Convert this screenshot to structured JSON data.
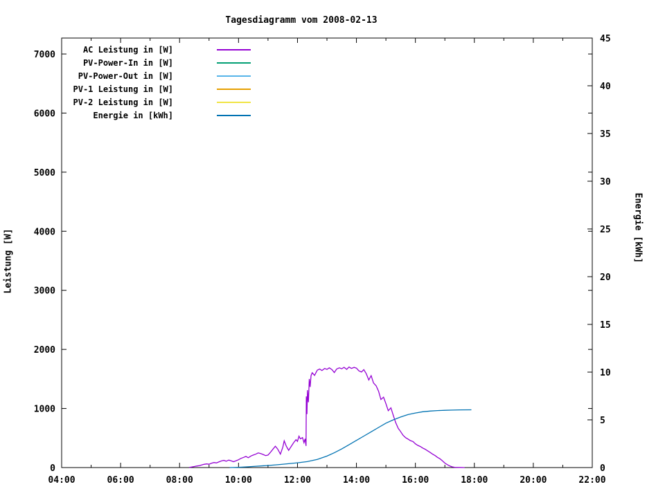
{
  "chart_data": {
    "type": "line",
    "title": "Tagesdiagramm vom 2008-02-13",
    "grid": false,
    "legend_position": "top-left-inside",
    "x_axis": {
      "unit": "time",
      "range": [
        4,
        22
      ],
      "ticks": [
        {
          "hour": 4,
          "label": "04:00"
        },
        {
          "hour": 6,
          "label": "06:00"
        },
        {
          "hour": 8,
          "label": "08:00"
        },
        {
          "hour": 10,
          "label": "10:00"
        },
        {
          "hour": 12,
          "label": "12:00"
        },
        {
          "hour": 14,
          "label": "14:00"
        },
        {
          "hour": 16,
          "label": "16:00"
        },
        {
          "hour": 18,
          "label": "18:00"
        },
        {
          "hour": 20,
          "label": "20:00"
        },
        {
          "hour": 22,
          "label": "22:00"
        }
      ],
      "minor_ticks": [
        5,
        7,
        9,
        11,
        13,
        15,
        17,
        19,
        21
      ]
    },
    "y_left": {
      "label": "Leistung [W]",
      "range": [
        0,
        7270
      ],
      "ticks": [
        0,
        1000,
        2000,
        3000,
        4000,
        5000,
        6000,
        7000
      ]
    },
    "y_right": {
      "label": "Energie [kWh]",
      "range": [
        0,
        45
      ],
      "ticks": [
        0,
        5,
        10,
        15,
        20,
        25,
        30,
        35,
        40,
        45
      ]
    },
    "series": [
      {
        "id": "ac-leistung",
        "name": "AC Leistung in [W]",
        "color": "#9400D3",
        "axis": "left",
        "points": [
          [
            8.33,
            2
          ],
          [
            8.42,
            10
          ],
          [
            8.5,
            18
          ],
          [
            8.58,
            26
          ],
          [
            8.67,
            32
          ],
          [
            8.75,
            45
          ],
          [
            8.83,
            55
          ],
          [
            8.92,
            62
          ],
          [
            9.0,
            56
          ],
          [
            9.08,
            72
          ],
          [
            9.17,
            85
          ],
          [
            9.25,
            78
          ],
          [
            9.33,
            95
          ],
          [
            9.42,
            112
          ],
          [
            9.5,
            122
          ],
          [
            9.58,
            108
          ],
          [
            9.67,
            126
          ],
          [
            9.75,
            114
          ],
          [
            9.83,
            100
          ],
          [
            9.92,
            116
          ],
          [
            10.0,
            132
          ],
          [
            10.08,
            155
          ],
          [
            10.17,
            172
          ],
          [
            10.25,
            188
          ],
          [
            10.33,
            166
          ],
          [
            10.42,
            196
          ],
          [
            10.5,
            212
          ],
          [
            10.58,
            226
          ],
          [
            10.67,
            248
          ],
          [
            10.75,
            236
          ],
          [
            10.83,
            222
          ],
          [
            10.92,
            202
          ],
          [
            11.0,
            212
          ],
          [
            11.08,
            256
          ],
          [
            11.17,
            312
          ],
          [
            11.25,
            362
          ],
          [
            11.33,
            312
          ],
          [
            11.42,
            228
          ],
          [
            11.5,
            342
          ],
          [
            11.55,
            452
          ],
          [
            11.62,
            362
          ],
          [
            11.7,
            292
          ],
          [
            11.78,
            352
          ],
          [
            11.87,
            422
          ],
          [
            11.95,
            472
          ],
          [
            12.0,
            442
          ],
          [
            12.05,
            532
          ],
          [
            12.1,
            486
          ],
          [
            12.17,
            508
          ],
          [
            12.22,
            422
          ],
          [
            12.26,
            486
          ],
          [
            12.29,
            366
          ],
          [
            12.3,
            1205
          ],
          [
            12.32,
            905
          ],
          [
            12.34,
            1310
          ],
          [
            12.37,
            1105
          ],
          [
            12.4,
            1500
          ],
          [
            12.43,
            1365
          ],
          [
            12.46,
            1555
          ],
          [
            12.5,
            1605
          ],
          [
            12.58,
            1560
          ],
          [
            12.67,
            1648
          ],
          [
            12.75,
            1668
          ],
          [
            12.83,
            1642
          ],
          [
            12.92,
            1678
          ],
          [
            13.0,
            1662
          ],
          [
            13.08,
            1688
          ],
          [
            13.17,
            1658
          ],
          [
            13.25,
            1608
          ],
          [
            13.33,
            1668
          ],
          [
            13.42,
            1688
          ],
          [
            13.5,
            1672
          ],
          [
            13.58,
            1696
          ],
          [
            13.67,
            1662
          ],
          [
            13.75,
            1702
          ],
          [
            13.83,
            1678
          ],
          [
            13.92,
            1696
          ],
          [
            14.0,
            1682
          ],
          [
            14.08,
            1638
          ],
          [
            14.17,
            1618
          ],
          [
            14.25,
            1658
          ],
          [
            14.33,
            1592
          ],
          [
            14.42,
            1482
          ],
          [
            14.5,
            1556
          ],
          [
            14.58,
            1432
          ],
          [
            14.67,
            1382
          ],
          [
            14.75,
            1292
          ],
          [
            14.83,
            1152
          ],
          [
            14.92,
            1192
          ],
          [
            15.0,
            1082
          ],
          [
            15.08,
            962
          ],
          [
            15.17,
            1012
          ],
          [
            15.25,
            882
          ],
          [
            15.33,
            762
          ],
          [
            15.42,
            662
          ],
          [
            15.47,
            630
          ],
          [
            15.58,
            548
          ],
          [
            15.67,
            506
          ],
          [
            15.75,
            482
          ],
          [
            15.83,
            456
          ],
          [
            15.92,
            440
          ],
          [
            16.0,
            402
          ],
          [
            16.08,
            376
          ],
          [
            16.17,
            356
          ],
          [
            16.25,
            330
          ],
          [
            16.33,
            310
          ],
          [
            16.42,
            282
          ],
          [
            16.5,
            256
          ],
          [
            16.58,
            230
          ],
          [
            16.67,
            202
          ],
          [
            16.75,
            172
          ],
          [
            16.83,
            150
          ],
          [
            16.92,
            112
          ],
          [
            17.0,
            76
          ],
          [
            17.08,
            50
          ],
          [
            17.17,
            26
          ],
          [
            17.25,
            12
          ],
          [
            17.33,
            5
          ],
          [
            17.5,
            2
          ],
          [
            17.67,
            0
          ]
        ]
      },
      {
        "id": "pv-power-in",
        "name": "PV-Power-In in [W]",
        "color": "#009E73",
        "axis": "left",
        "points": []
      },
      {
        "id": "pv-power-out",
        "name": "PV-Power-Out in [W]",
        "color": "#56B4E9",
        "axis": "left",
        "points": []
      },
      {
        "id": "pv-1-leistung",
        "name": "PV-1 Leistung in [W]",
        "color": "#E69F00",
        "axis": "left",
        "points": []
      },
      {
        "id": "pv-2-leistung",
        "name": "PV-2 Leistung in [W]",
        "color": "#F0E442",
        "axis": "left",
        "points": []
      },
      {
        "id": "energie",
        "name": "Energie in [kWh]",
        "color": "#0072B2",
        "axis": "right",
        "points": [
          [
            9.7,
            0.0
          ],
          [
            10.0,
            0.03
          ],
          [
            10.33,
            0.08
          ],
          [
            10.67,
            0.15
          ],
          [
            11.0,
            0.22
          ],
          [
            11.33,
            0.3
          ],
          [
            11.67,
            0.4
          ],
          [
            12.0,
            0.5
          ],
          [
            12.33,
            0.62
          ],
          [
            12.67,
            0.85
          ],
          [
            13.0,
            1.2
          ],
          [
            13.25,
            1.55
          ],
          [
            13.5,
            1.95
          ],
          [
            13.75,
            2.4
          ],
          [
            14.0,
            2.85
          ],
          [
            14.25,
            3.3
          ],
          [
            14.5,
            3.75
          ],
          [
            14.75,
            4.2
          ],
          [
            15.0,
            4.65
          ],
          [
            15.25,
            5.0
          ],
          [
            15.5,
            5.3
          ],
          [
            15.75,
            5.55
          ],
          [
            16.0,
            5.72
          ],
          [
            16.25,
            5.85
          ],
          [
            16.5,
            5.92
          ],
          [
            16.75,
            5.97
          ],
          [
            17.0,
            6.0
          ],
          [
            17.25,
            6.02
          ],
          [
            17.5,
            6.04
          ],
          [
            17.9,
            6.05
          ]
        ]
      }
    ]
  }
}
